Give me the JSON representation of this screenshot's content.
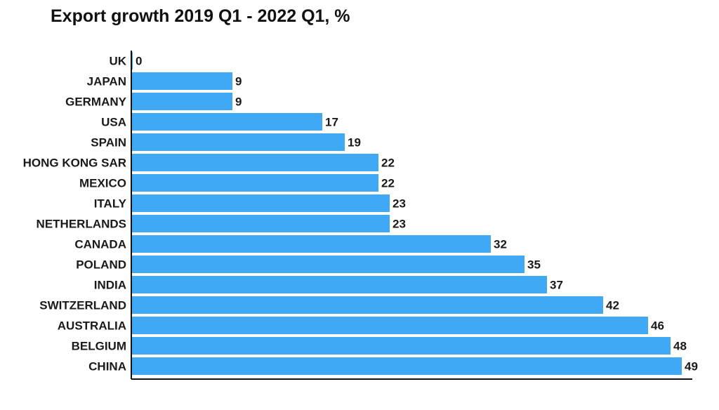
{
  "chart_data": {
    "type": "bar",
    "orientation": "horizontal",
    "title": "Export growth 2019 Q1 - 2022 Q1, %",
    "categories": [
      "UK",
      "JAPAN",
      "GERMANY",
      "USA",
      "SPAIN",
      "HONG KONG SAR",
      "MEXICO",
      "ITALY",
      "NETHERLANDS",
      "CANADA",
      "POLAND",
      "INDIA",
      "SWITZERLAND",
      "AUSTRALIA",
      "BELGIUM",
      "CHINA"
    ],
    "values": [
      0,
      9,
      9,
      17,
      19,
      22,
      22,
      23,
      23,
      32,
      35,
      37,
      42,
      46,
      48,
      49
    ],
    "xlim": [
      0,
      49
    ],
    "xlabel": "",
    "ylabel": "",
    "grid": false,
    "legend": "none",
    "data_labels": true,
    "colors": {
      "bar": "#3fa9f5",
      "axis": "#111111",
      "text": "#1a1a1a"
    }
  }
}
